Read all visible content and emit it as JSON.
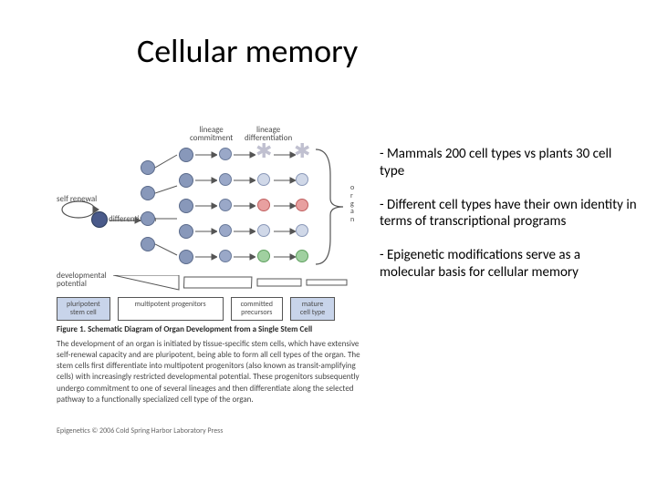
{
  "title": "Cellular memory",
  "diagram": {
    "labels": {
      "lineage_commitment": "lineage\ncommitment",
      "lineage_differentiation": "lineage\ndifferentiation",
      "self_renewal": "self renewal",
      "differentiation": "differentiation",
      "organ": "o\nr\ng\na\nn",
      "developmental_potential": "developmental\npotential"
    },
    "legend": {
      "pluripotent": "pluripotent\nstem cell",
      "multipotent": "multipotent progenitors",
      "committed": "committed\nprecursors",
      "mature": "mature\ncell type"
    },
    "caption_title": "Figure 1. Schematic Diagram of Organ Development from a Single Stem Cell",
    "caption_body": "The development of an organ is initiated by tissue-specific stem cells, which have extensive self-renewal capacity and are pluripotent, being able to form all cell types of the organ. The stem cells first differentiate into multipotent progenitors (also known as transit-amplifying cells) with increasingly restricted developmental potential. These progenitors subsequently undergo commitment to one of several lineages and then differentiate along the selected pathway to a functionally specialized cell type of the organ.",
    "copyright": "Epigenetics © 2006 Cold Spring Harbor Laboratory Press"
  },
  "bullets": {
    "b1": "- Mammals 200 cell types vs plants 30 cell type",
    "b2": "- Different cell types have their own identity in terms of transcriptional programs",
    "b3": "- Epigenetic modifications serve as a molecular basis for cellular memory"
  },
  "colors": {
    "stem": "#4a5a8a",
    "progenitor": "#8898ba",
    "committed": "#9aa8c8",
    "mature_blue": "#d0d8e8",
    "mature_red": "#e8a0a0",
    "mature_green": "#a0d0a0",
    "legend_blue": "#c8d4ea",
    "text_gray": "#4a4a4a",
    "arrow": "#555555"
  }
}
